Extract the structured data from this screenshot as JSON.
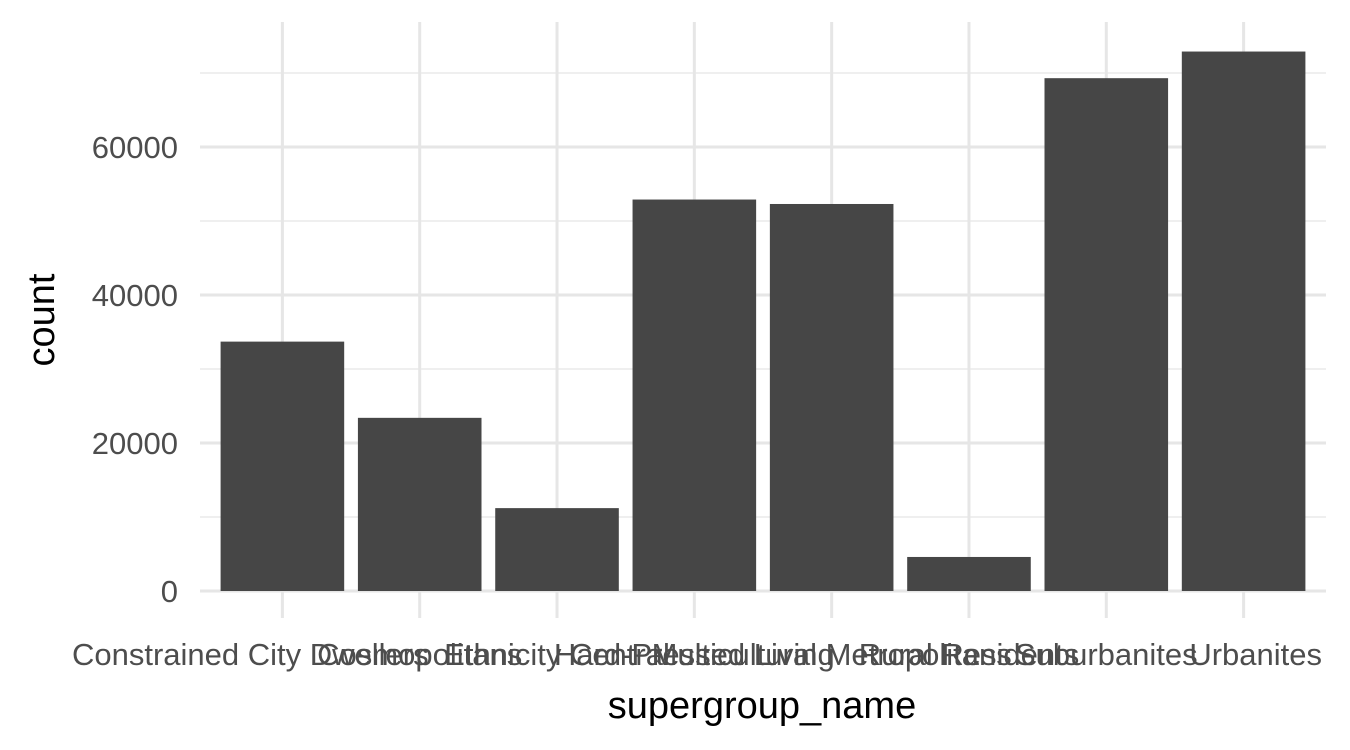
{
  "chart_data": {
    "type": "bar",
    "xlabel": "supergroup_name",
    "ylabel": "count",
    "categories": [
      "Constrained City Dwellers",
      "Cosmopolitans",
      "Ethnicity Central",
      "Hard-Pressed Living",
      "Multicultural Metropolitans",
      "Rural Residents",
      "Suburbanites",
      "Urbanites"
    ],
    "values": [
      33700,
      23400,
      11200,
      52900,
      52300,
      4600,
      69300,
      72900
    ],
    "ylim": [
      0,
      75000
    ],
    "yticks": [
      0,
      20000,
      40000,
      60000
    ],
    "ytick_labels": [
      "0",
      "20000",
      "40000",
      "60000"
    ],
    "grid": true,
    "colors": {
      "bar": "#464646",
      "grid": "#e6e6e6",
      "background": "#ffffff"
    }
  }
}
